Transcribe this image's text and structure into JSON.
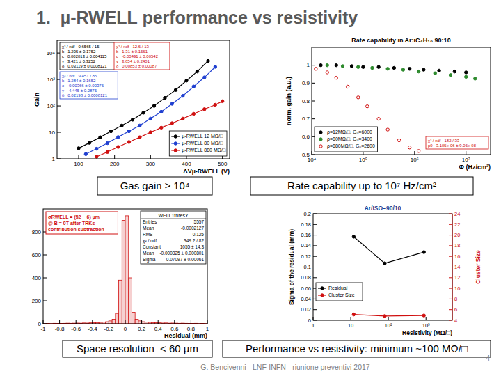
{
  "slide": {
    "title": "1.  µ-RWELL performance vs resistivity",
    "captions": [
      "Gas gain ≥ 10⁴",
      "Rate capability up to 10⁷ Hz/cm²",
      "Space resolution  < 60 µm",
      "Performance vs resistivity: minimum ~100 MΩ/□"
    ],
    "footer": "G. Bencivenni - LNF-INFN - riunione preventivi 2017",
    "page": "4"
  },
  "chart_data": [
    {
      "type": "scatter",
      "x_label": "ΔVµ-RWELL (V)",
      "y_label": "Gain",
      "log": "y",
      "xlim": [
        40,
        520
      ],
      "ylim": [
        1,
        30000
      ],
      "xticks": [
        100,
        200,
        300,
        400,
        500
      ],
      "yticks": [
        1,
        10,
        {
          "value": 100,
          "label": "10²"
        },
        {
          "value": 1000,
          "label": "10³"
        },
        {
          "value": 10000,
          "label": "10⁴"
        }
      ],
      "legend": "lower right",
      "series": [
        {
          "name": "µ-RWELL 12 MΩ/□",
          "color": "#000000",
          "marker": "circle",
          "line_style": "solid",
          "x": [
            100,
            130,
            160,
            190,
            220,
            250,
            280,
            310,
            340,
            370,
            400,
            430,
            460
          ],
          "values": [
            2.5,
            4,
            6.5,
            11,
            18,
            30,
            55,
            100,
            200,
            400,
            900,
            2000,
            5000
          ]
        },
        {
          "name": "µ-RWELL 80 MΩ/□",
          "color": "#1f3fd0",
          "marker": "circle",
          "line_style": "solid",
          "x": [
            120,
            150,
            180,
            210,
            240,
            270,
            300,
            330,
            360,
            390,
            420,
            450,
            480
          ],
          "values": [
            1.5,
            2.4,
            3.9,
            6.6,
            11,
            18,
            33,
            60,
            120,
            240,
            540,
            1200,
            3000
          ]
        },
        {
          "name": "µ-RWELL 880 MΩ/□",
          "color": "#d01010",
          "marker": "circle",
          "line_style": "solid",
          "x": [
            150,
            180,
            210,
            240,
            270,
            300,
            330,
            360,
            390,
            420,
            450,
            480,
            500
          ],
          "values": [
            1.2,
            1.8,
            2.8,
            4.3,
            6.5,
            10,
            15,
            22,
            33,
            50,
            75,
            110,
            150
          ]
        }
      ],
      "fit_boxes": [
        {
          "color": "#000000",
          "lines": [
            "χ² / ndf   0.6565 / 15",
            "b   1.295 ± 0.1752",
            "c   0.002013 ± 0.004115",
            "γ   3.421 ± 0.3252",
            "δ   0.03119 ± 0.0008121"
          ]
        },
        {
          "color": "#1f3fd0",
          "lines": [
            "χ² / ndf   9.451 / 85",
            "b   1.284 ± 0.1652",
            "c   -0.00366 ± 0.00376",
            "γ   -4.445 ± 0.2875",
            "δ   0.02198 ± 0.0008121"
          ]
        },
        {
          "color": "#d01010",
          "lines": [
            "χ² / ndf   12.6 / 13",
            "b   1.31 ± 0.1561",
            "c   -0.00491 ± 0.00542",
            "γ   3.654 ± 0.2401",
            "δ   0.00853 ± 0.00087"
          ]
        }
      ]
    },
    {
      "type": "scatter",
      "title": "Rate capability in Ar:iC₄H₁₀ 90:10",
      "x_label": "Φ (Hz/cm²)",
      "y_label": "norm. gain (a.u.)",
      "log": "x",
      "xlim": [
        10000,
        30000000
      ],
      "ylim": [
        0.5,
        1.1
      ],
      "xticks": [
        {
          "value": 10000,
          "label": "10⁴"
        },
        {
          "value": 100000,
          "label": "10⁵"
        },
        {
          "value": 1000000,
          "label": "10⁶"
        },
        {
          "value": 10000000,
          "label": "10⁷"
        }
      ],
      "yticks": [
        0.5,
        0.6,
        0.7,
        0.8,
        0.9,
        1
      ],
      "legend": "lower left",
      "series": [
        {
          "name": "ρ=12MΩ/□, G₀=6000",
          "color": "#000000",
          "marker": "circle",
          "x": [
            15000,
            30000,
            60000,
            100000,
            200000,
            400000,
            800000,
            1500000,
            3000000,
            6000000,
            10000000
          ],
          "values": [
            1,
            1,
            0.995,
            0.99,
            0.99,
            0.985,
            0.98,
            0.975,
            0.97,
            0.965,
            0.96
          ]
        },
        {
          "name": "ρ=80MΩ/□, G₀=3400",
          "color": "#2e8b2e",
          "marker": "circle",
          "x": [
            20000,
            40000,
            80000,
            150000,
            300000,
            600000,
            1200000,
            2500000,
            5000000,
            10000000,
            15000000
          ],
          "values": [
            1,
            0.995,
            0.99,
            0.985,
            0.98,
            0.975,
            0.965,
            0.955,
            0.945,
            0.935,
            0.925
          ]
        },
        {
          "name": "ρ=880MΩ/□, G₀=2600",
          "color": "#d01010",
          "marker": "open_circle",
          "x": [
            12000,
            20000,
            30000,
            50000,
            80000,
            120000,
            200000,
            300000,
            500000,
            800000,
            1200000
          ],
          "values": [
            0.98,
            0.96,
            0.93,
            0.88,
            0.82,
            0.77,
            0.7,
            0.64,
            0.58,
            0.54,
            0.52
          ]
        }
      ],
      "fit_boxes": [
        {
          "color": "#d01010",
          "lines": [
            "χ² / ndf   182 / 33",
            "p0   3.105e-06 ± 9.06e-08"
          ]
        }
      ]
    },
    {
      "type": "histogram",
      "title": "WELL1thresY",
      "x_label": "Residual (mm)",
      "color": "#d01010",
      "xlim": [
        -1,
        1
      ],
      "ylim": [
        0,
        1000
      ],
      "xticks": [
        -1,
        -0.8,
        -0.6,
        -0.4,
        -0.2,
        0,
        0.2,
        0.4,
        0.6,
        0.8,
        1
      ],
      "yticks": [
        0,
        200,
        400,
        600,
        800
      ],
      "bins": [
        -1,
        -0.96,
        -0.92,
        -0.88,
        -0.84,
        -0.8,
        -0.76,
        -0.72,
        -0.68,
        -0.64,
        -0.6,
        -0.56,
        -0.52,
        -0.48,
        -0.44,
        -0.4,
        -0.36,
        -0.32,
        -0.28,
        -0.24,
        -0.2,
        -0.16,
        -0.12,
        -0.08,
        -0.04,
        0,
        0.04,
        0.08,
        0.12,
        0.16,
        0.2,
        0.24,
        0.28,
        0.32,
        0.36,
        0.4,
        0.44,
        0.48,
        0.52,
        0.56,
        0.6,
        0.64,
        0.68,
        0.72,
        0.76,
        0.8,
        0.84,
        0.88,
        0.92,
        0.96,
        1
      ],
      "values": [
        2,
        3,
        2,
        4,
        3,
        3,
        4,
        5,
        4,
        5,
        6,
        5,
        7,
        6,
        8,
        9,
        10,
        12,
        14,
        18,
        25,
        40,
        90,
        380,
        900,
        940,
        400,
        100,
        40,
        25,
        18,
        14,
        12,
        10,
        9,
        8,
        6,
        7,
        5,
        6,
        5,
        4,
        5,
        4,
        3,
        3,
        4,
        2,
        3,
        2
      ],
      "stats": [
        {
          "label": "Entries",
          "value": "5557"
        },
        {
          "label": "Mean",
          "value": "-0.0002127"
        },
        {
          "label": "RMS",
          "value": "0.125"
        },
        {
          "label": "χ² / ndf",
          "value": "349.2 / 82"
        },
        {
          "label": "Constant",
          "value": "1055 ± 14.3"
        },
        {
          "label": "Mean",
          "value": "-0.000325 ± 0.000801"
        },
        {
          "label": "Sigma",
          "value": "0.07097 ± 0.00061"
        }
      ],
      "annotation": [
        "σRWELL = (52 − 6) µm",
        "@ B = 0T after TRKs",
        "contribution subtraction"
      ]
    },
    {
      "type": "line",
      "title": "Ar/ISO=90/10",
      "x_label": "Resistivity (MΩ/□)",
      "y_label": "Sigma of the residual (mm)",
      "y2_label": "Cluster Size",
      "log": "x",
      "xlim": [
        1,
        5000
      ],
      "ylim": [
        0,
        0.2
      ],
      "y2lim": [
        4,
        24
      ],
      "xticks": [
        1,
        10,
        {
          "value": 100,
          "label": "10²"
        },
        {
          "value": 1000,
          "label": "10³"
        }
      ],
      "yticks": [
        0,
        0.02,
        0.04,
        0.06,
        0.08,
        0.1,
        0.12,
        0.14,
        0.16,
        0.18,
        0.2
      ],
      "y2ticks": [
        4,
        6,
        8,
        10,
        12,
        14,
        16,
        18,
        20,
        22,
        24
      ],
      "legend": "lower left",
      "series": [
        {
          "name": "Residual",
          "color": "#000000",
          "marker": "circle",
          "x": [
            12,
            80,
            880
          ],
          "values": [
            0.157,
            0.107,
            0.128
          ]
        },
        {
          "name": "Cluster Size",
          "color": "#d01010",
          "marker": "circle",
          "axis": "y2",
          "x": [
            12,
            80,
            880
          ],
          "values": [
            5.1,
            4.8,
            4.9
          ]
        }
      ]
    }
  ]
}
